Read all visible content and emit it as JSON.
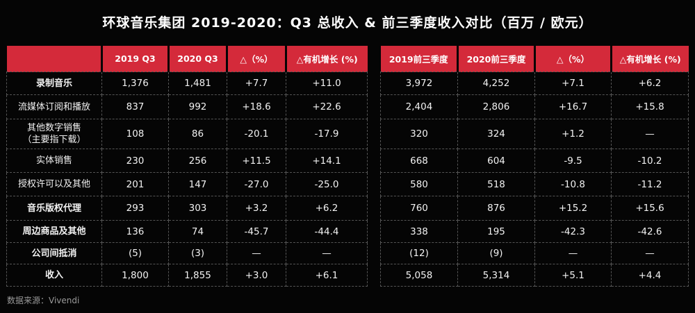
{
  "title": "环球音乐集团 2019-2020：Q3 总收入 & 前三季度收入对比（百万 / 欧元）",
  "source": "数据来源：Vivendi",
  "colors": {
    "header": "#d42a3a",
    "background": "#050505"
  },
  "chart_data": {
    "type": "table",
    "title": "环球音乐集团 2019-2020：Q3 总收入 & 前三季度收入对比（百万 / 欧元）",
    "left_table": {
      "columns": [
        "",
        "2019 Q3",
        "2020 Q3",
        "△（%）",
        "△有机增长 (%)"
      ]
    },
    "right_table": {
      "columns": [
        "2019前三季度",
        "2020前三季度",
        "△（%）",
        "△有机增长 (%)"
      ]
    },
    "rows": [
      {
        "label": "录制音乐",
        "bold": true,
        "q3": [
          "1,376",
          "1,481",
          "+7.7",
          "+11.0"
        ],
        "ytd": [
          "3,972",
          "4,252",
          "+7.1",
          "+6.2"
        ]
      },
      {
        "label": "流媒体订阅和播放",
        "bold": false,
        "q3": [
          "837",
          "992",
          "+18.6",
          "+22.6"
        ],
        "ytd": [
          "2,404",
          "2,806",
          "+16.7",
          "+15.8"
        ]
      },
      {
        "label": "其他数字销售\n（主要指下载）",
        "bold": false,
        "q3": [
          "108",
          "86",
          "-20.1",
          "-17.9"
        ],
        "ytd": [
          "320",
          "324",
          "+1.2",
          "—"
        ]
      },
      {
        "label": "实体销售",
        "bold": false,
        "q3": [
          "230",
          "256",
          "+11.5",
          "+14.1"
        ],
        "ytd": [
          "668",
          "604",
          "-9.5",
          "-10.2"
        ]
      },
      {
        "label": "授权许可以及其他",
        "bold": false,
        "q3": [
          "201",
          "147",
          "-27.0",
          "-25.0"
        ],
        "ytd": [
          "580",
          "518",
          "-10.8",
          "-11.2"
        ]
      },
      {
        "label": "音乐版权代理",
        "bold": true,
        "q3": [
          "293",
          "303",
          "+3.2",
          "+6.2"
        ],
        "ytd": [
          "760",
          "876",
          "+15.2",
          "+15.6"
        ]
      },
      {
        "label": "周边商品及其他",
        "bold": true,
        "q3": [
          "136",
          "74",
          "-45.7",
          "-44.4"
        ],
        "ytd": [
          "338",
          "195",
          "-42.3",
          "-42.6"
        ]
      },
      {
        "label": "公司间抵消",
        "bold": true,
        "q3": [
          "(5)",
          "(3)",
          "—",
          "—"
        ],
        "ytd": [
          "(12)",
          "(9)",
          "—",
          "—"
        ]
      },
      {
        "label": "收入",
        "bold": true,
        "q3": [
          "1,800",
          "1,855",
          "+3.0",
          "+6.1"
        ],
        "ytd": [
          "5,058",
          "5,314",
          "+5.1",
          "+4.4"
        ]
      }
    ]
  }
}
